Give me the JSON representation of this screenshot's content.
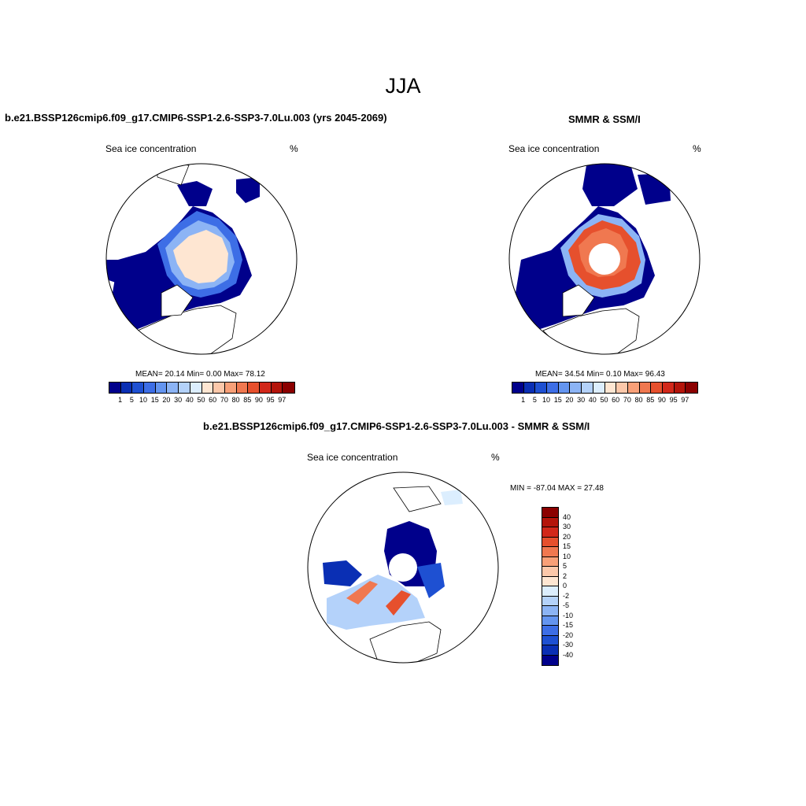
{
  "page_title": "JJA",
  "panel_left": {
    "heading": "b.e21.BSSP126cmip6.f09_g17.CMIP6-SSP1-2.6-SSP3-7.0Lu.003 (yrs 2045-2069)",
    "variable": "Sea ice concentration",
    "units": "%",
    "stats": "MEAN=  20.14  Min=   0.00  Max=  78.12"
  },
  "panel_right": {
    "heading": "SMMR & SSM/I",
    "variable": "Sea ice concentration",
    "units": "%",
    "stats": "MEAN=  34.54  Min=   0.10  Max=  96.43"
  },
  "panel_diff": {
    "heading": "b.e21.BSSP126cmip6.f09_g17.CMIP6-SSP1-2.6-SSP3-7.0Lu.003 - SMMR & SSM/I",
    "variable": "Sea ice concentration",
    "units": "%",
    "minmax": "MIN = -87.04 MAX =  27.48"
  },
  "colorbar_main": {
    "labels": [
      "1",
      "5",
      "10",
      "15",
      "20",
      "30",
      "40",
      "50",
      "60",
      "70",
      "80",
      "85",
      "90",
      "95",
      "97"
    ],
    "colors": [
      "#00008b",
      "#0a2fb4",
      "#1e50d2",
      "#3d6ee6",
      "#6495f0",
      "#8cb4f5",
      "#b4d2fa",
      "#dceefe",
      "#fee6d2",
      "#fcc8aa",
      "#f8a078",
      "#f07850",
      "#e6502d",
      "#d2281a",
      "#b4140a",
      "#8b0000"
    ]
  },
  "colorbar_diff": {
    "labels": [
      "40",
      "30",
      "20",
      "15",
      "10",
      "5",
      "2",
      "0",
      "-2",
      "-5",
      "-10",
      "-15",
      "-20",
      "-30",
      "-40"
    ],
    "colors": [
      "#8b0000",
      "#b4140a",
      "#d2281a",
      "#e6502d",
      "#f07850",
      "#f8a078",
      "#fcc8aa",
      "#fee6d2",
      "#dceefe",
      "#b4d2fa",
      "#8cb4f5",
      "#6495f0",
      "#3d6ee6",
      "#1e50d2",
      "#0a2fb4",
      "#00008b"
    ]
  }
}
